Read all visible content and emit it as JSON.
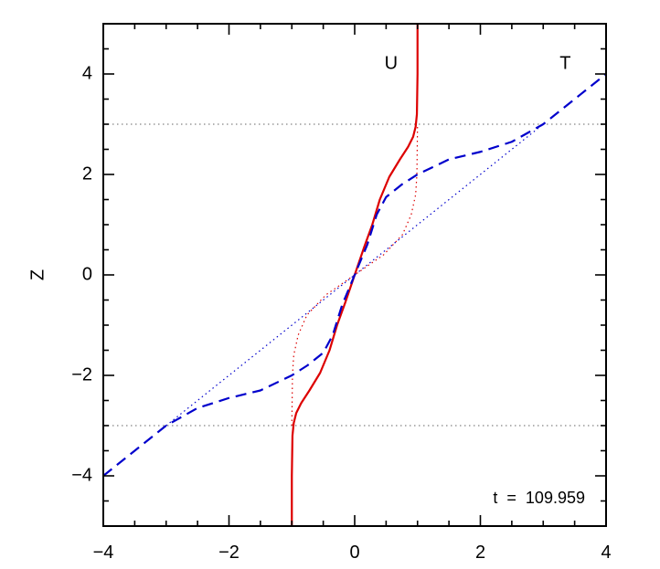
{
  "chart_data": {
    "type": "line",
    "title": "",
    "xlabel": "",
    "ylabel": "Z",
    "xlim": [
      -4,
      4
    ],
    "ylim": [
      -5,
      5
    ],
    "x_ticks": [
      -4,
      -2,
      0,
      2,
      4
    ],
    "y_ticks": [
      -4,
      -2,
      0,
      2,
      4
    ],
    "x_tick_labels": [
      "−4",
      "−2",
      "0",
      "2",
      "4"
    ],
    "y_tick_labels": [
      "−4",
      "−2",
      "0",
      "2",
      "4"
    ],
    "grid": false,
    "annotation": "t  =  109.959",
    "curve_labels": {
      "u": {
        "text": "U",
        "x": 0.58,
        "z": 4.1
      },
      "t": {
        "text": "T",
        "x": 3.35,
        "z": 4.1
      }
    },
    "reference_lines": [
      {
        "kind": "horizontal",
        "z": 3,
        "color": "#999999",
        "style": "dotted"
      },
      {
        "kind": "horizontal",
        "z": -3,
        "color": "#999999",
        "style": "dotted"
      }
    ],
    "series": [
      {
        "color": "#dd0000",
        "style": "solid",
        "points": [
          [
            -1.0,
            -5.0
          ],
          [
            -1.0,
            -4.0
          ],
          [
            -0.99,
            -3.2
          ],
          [
            -0.97,
            -2.95
          ],
          [
            -0.93,
            -2.75
          ],
          [
            -0.85,
            -2.55
          ],
          [
            -0.72,
            -2.3
          ],
          [
            -0.55,
            -1.95
          ],
          [
            -0.4,
            -1.5
          ],
          [
            -0.28,
            -1.0
          ],
          [
            -0.15,
            -0.55
          ],
          [
            0.0,
            0.0
          ],
          [
            0.15,
            0.55
          ],
          [
            0.28,
            1.0
          ],
          [
            0.4,
            1.5
          ],
          [
            0.55,
            1.95
          ],
          [
            0.72,
            2.3
          ],
          [
            0.85,
            2.55
          ],
          [
            0.93,
            2.75
          ],
          [
            0.97,
            2.95
          ],
          [
            0.99,
            3.2
          ],
          [
            1.0,
            4.0
          ],
          [
            1.0,
            5.0
          ]
        ]
      },
      {
        "color": "#dd0000",
        "style": "dotted",
        "points": [
          [
            -1.0,
            -3.0
          ],
          [
            -0.99,
            -2.0
          ],
          [
            -0.97,
            -1.6
          ],
          [
            -0.9,
            -1.2
          ],
          [
            -0.76,
            -0.8
          ],
          [
            -0.46,
            -0.4
          ],
          [
            0.0,
            0.0
          ],
          [
            0.46,
            0.4
          ],
          [
            0.76,
            0.8
          ],
          [
            0.9,
            1.2
          ],
          [
            0.97,
            1.6
          ],
          [
            0.99,
            2.0
          ],
          [
            1.0,
            3.0
          ]
        ]
      },
      {
        "color": "#0000cc",
        "style": "dashed",
        "points": [
          [
            -4.0,
            -4.0
          ],
          [
            -3.5,
            -3.5
          ],
          [
            -3.0,
            -3.0
          ],
          [
            -2.5,
            -2.65
          ],
          [
            -2.0,
            -2.45
          ],
          [
            -1.5,
            -2.3
          ],
          [
            -1.0,
            -2.0
          ],
          [
            -0.75,
            -1.8
          ],
          [
            -0.5,
            -1.55
          ],
          [
            -0.35,
            -1.2
          ],
          [
            -0.2,
            -0.6
          ],
          [
            0.0,
            0.0
          ],
          [
            0.2,
            0.6
          ],
          [
            0.35,
            1.2
          ],
          [
            0.5,
            1.55
          ],
          [
            0.75,
            1.8
          ],
          [
            1.0,
            2.0
          ],
          [
            1.5,
            2.3
          ],
          [
            2.0,
            2.45
          ],
          [
            2.5,
            2.65
          ],
          [
            3.0,
            3.0
          ],
          [
            3.5,
            3.5
          ],
          [
            4.0,
            4.0
          ]
        ]
      },
      {
        "color": "#0000cc",
        "style": "dotted",
        "points": [
          [
            -3.0,
            -3.0
          ],
          [
            3.0,
            3.0
          ]
        ]
      }
    ]
  }
}
